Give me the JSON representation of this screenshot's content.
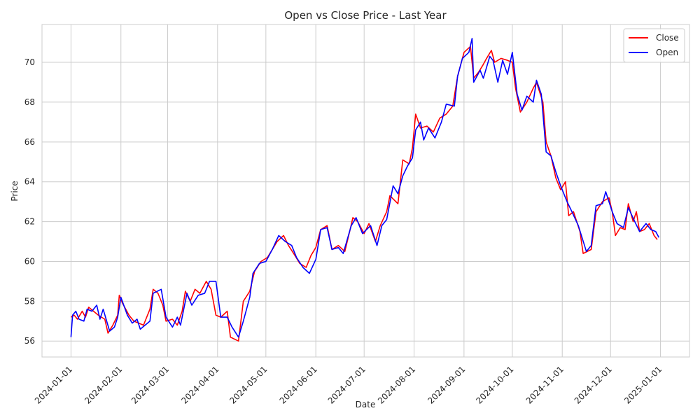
{
  "chart_data": {
    "type": "line",
    "title": "Open vs Close Price - Last Year",
    "xlabel": "Date",
    "ylabel": "Price",
    "xlim": [
      "2023-12-14",
      "2025-01-19"
    ],
    "ylim": [
      55.2,
      71.9
    ],
    "x_ticks": [
      "2024-01-01",
      "2024-02-01",
      "2024-03-01",
      "2024-04-01",
      "2024-05-01",
      "2024-06-01",
      "2024-07-01",
      "2024-08-01",
      "2024-09-01",
      "2024-10-01",
      "2024-11-01",
      "2024-12-01",
      "2025-01-01"
    ],
    "y_ticks": [
      56,
      58,
      60,
      62,
      64,
      66,
      68,
      70
    ],
    "grid": true,
    "legend_position": "top-right",
    "series": [
      {
        "name": "Close",
        "color": "#ff0000",
        "points": [
          [
            "2024-01-01",
            57.2
          ],
          [
            "2024-01-03",
            57.3
          ],
          [
            "2024-01-05",
            57.1
          ],
          [
            "2024-01-08",
            57.5
          ],
          [
            "2024-01-10",
            57.2
          ],
          [
            "2024-01-12",
            57.7
          ],
          [
            "2024-01-15",
            57.5
          ],
          [
            "2024-01-18",
            57.3
          ],
          [
            "2024-01-22",
            57.1
          ],
          [
            "2024-01-24",
            56.4
          ],
          [
            "2024-01-27",
            56.8
          ],
          [
            "2024-01-30",
            57.3
          ],
          [
            "2024-01-31",
            58.3
          ],
          [
            "2024-02-02",
            57.9
          ],
          [
            "2024-02-06",
            57.3
          ],
          [
            "2024-02-09",
            57.0
          ],
          [
            "2024-02-12",
            56.9
          ],
          [
            "2024-02-15",
            56.8
          ],
          [
            "2024-02-19",
            57.6
          ],
          [
            "2024-02-21",
            58.6
          ],
          [
            "2024-02-24",
            58.4
          ],
          [
            "2024-02-27",
            57.8
          ],
          [
            "2024-02-29",
            57.0
          ],
          [
            "2024-03-04",
            57.1
          ],
          [
            "2024-03-07",
            56.8
          ],
          [
            "2024-03-10",
            57.5
          ],
          [
            "2024-03-12",
            58.5
          ],
          [
            "2024-03-15",
            58.0
          ],
          [
            "2024-03-18",
            58.6
          ],
          [
            "2024-03-21",
            58.4
          ],
          [
            "2024-03-25",
            59.0
          ],
          [
            "2024-03-28",
            58.6
          ],
          [
            "2024-03-31",
            57.3
          ],
          [
            "2024-04-03",
            57.2
          ],
          [
            "2024-04-07",
            57.5
          ],
          [
            "2024-04-09",
            56.2
          ],
          [
            "2024-04-14",
            56.0
          ],
          [
            "2024-04-17",
            58.0
          ],
          [
            "2024-04-21",
            58.5
          ],
          [
            "2024-04-24",
            59.5
          ],
          [
            "2024-04-28",
            60.0
          ],
          [
            "2024-05-02",
            60.2
          ],
          [
            "2024-05-05",
            60.6
          ],
          [
            "2024-05-08",
            61.0
          ],
          [
            "2024-05-12",
            61.3
          ],
          [
            "2024-05-15",
            60.8
          ],
          [
            "2024-05-19",
            60.3
          ],
          [
            "2024-05-22",
            59.9
          ],
          [
            "2024-05-26",
            59.7
          ],
          [
            "2024-05-29",
            60.3
          ],
          [
            "2024-06-01",
            60.7
          ],
          [
            "2024-06-04",
            61.6
          ],
          [
            "2024-06-08",
            61.8
          ],
          [
            "2024-06-11",
            60.6
          ],
          [
            "2024-06-15",
            60.8
          ],
          [
            "2024-06-19",
            60.5
          ],
          [
            "2024-06-22",
            61.5
          ],
          [
            "2024-06-24",
            62.2
          ],
          [
            "2024-06-27",
            62.0
          ],
          [
            "2024-07-01",
            61.4
          ],
          [
            "2024-07-04",
            61.9
          ],
          [
            "2024-07-08",
            61.0
          ],
          [
            "2024-07-11",
            61.8
          ],
          [
            "2024-07-15",
            62.5
          ],
          [
            "2024-07-17",
            63.3
          ],
          [
            "2024-07-22",
            62.9
          ],
          [
            "2024-07-25",
            65.1
          ],
          [
            "2024-07-29",
            64.9
          ],
          [
            "2024-07-31",
            65.7
          ],
          [
            "2024-08-02",
            67.4
          ],
          [
            "2024-08-05",
            66.7
          ],
          [
            "2024-08-09",
            66.8
          ],
          [
            "2024-08-13",
            66.5
          ],
          [
            "2024-08-17",
            67.2
          ],
          [
            "2024-08-21",
            67.4
          ],
          [
            "2024-08-25",
            67.8
          ],
          [
            "2024-08-28",
            69.3
          ],
          [
            "2024-09-01",
            70.5
          ],
          [
            "2024-09-05",
            70.8
          ],
          [
            "2024-09-07",
            69.2
          ],
          [
            "2024-09-10",
            69.5
          ],
          [
            "2024-09-13",
            69.9
          ],
          [
            "2024-09-15",
            70.2
          ],
          [
            "2024-09-18",
            70.6
          ],
          [
            "2024-09-20",
            70.0
          ],
          [
            "2024-09-24",
            70.2
          ],
          [
            "2024-09-28",
            70.1
          ],
          [
            "2024-10-01",
            70.0
          ],
          [
            "2024-10-03",
            68.7
          ],
          [
            "2024-10-06",
            67.5
          ],
          [
            "2024-10-10",
            68.0
          ],
          [
            "2024-10-14",
            68.7
          ],
          [
            "2024-10-16",
            69.0
          ],
          [
            "2024-10-20",
            68.0
          ],
          [
            "2024-10-22",
            66.0
          ],
          [
            "2024-10-25",
            65.3
          ],
          [
            "2024-10-28",
            64.2
          ],
          [
            "2024-10-31",
            63.6
          ],
          [
            "2024-11-03",
            64.0
          ],
          [
            "2024-11-05",
            62.3
          ],
          [
            "2024-11-08",
            62.5
          ],
          [
            "2024-11-12",
            61.5
          ],
          [
            "2024-11-14",
            60.4
          ],
          [
            "2024-11-19",
            60.6
          ],
          [
            "2024-11-22",
            62.5
          ],
          [
            "2024-11-26",
            63.0
          ],
          [
            "2024-11-30",
            63.2
          ],
          [
            "2024-12-02",
            62.5
          ],
          [
            "2024-12-04",
            61.3
          ],
          [
            "2024-12-07",
            61.7
          ],
          [
            "2024-12-10",
            61.6
          ],
          [
            "2024-12-12",
            62.9
          ],
          [
            "2024-12-15",
            62.0
          ],
          [
            "2024-12-17",
            62.5
          ],
          [
            "2024-12-19",
            61.5
          ],
          [
            "2024-12-22",
            61.6
          ],
          [
            "2024-12-25",
            61.9
          ],
          [
            "2024-12-28",
            61.3
          ],
          [
            "2024-12-30",
            61.1
          ]
        ]
      },
      {
        "name": "Open",
        "color": "#0000ff",
        "points": [
          [
            "2024-01-01",
            56.2
          ],
          [
            "2024-01-02",
            57.3
          ],
          [
            "2024-01-04",
            57.5
          ],
          [
            "2024-01-06",
            57.1
          ],
          [
            "2024-01-09",
            57.0
          ],
          [
            "2024-01-11",
            57.6
          ],
          [
            "2024-01-14",
            57.5
          ],
          [
            "2024-01-17",
            57.8
          ],
          [
            "2024-01-19",
            57.1
          ],
          [
            "2024-01-21",
            57.6
          ],
          [
            "2024-01-25",
            56.5
          ],
          [
            "2024-01-28",
            56.7
          ],
          [
            "2024-01-30",
            57.2
          ],
          [
            "2024-02-01",
            58.2
          ],
          [
            "2024-02-05",
            57.3
          ],
          [
            "2024-02-08",
            56.9
          ],
          [
            "2024-02-11",
            57.1
          ],
          [
            "2024-02-13",
            56.6
          ],
          [
            "2024-02-19",
            57.0
          ],
          [
            "2024-02-21",
            58.4
          ],
          [
            "2024-02-26",
            58.6
          ],
          [
            "2024-02-29",
            57.2
          ],
          [
            "2024-03-04",
            56.7
          ],
          [
            "2024-03-07",
            57.2
          ],
          [
            "2024-03-09",
            56.8
          ],
          [
            "2024-03-13",
            58.4
          ],
          [
            "2024-03-16",
            57.8
          ],
          [
            "2024-03-20",
            58.3
          ],
          [
            "2024-03-24",
            58.4
          ],
          [
            "2024-03-27",
            59.0
          ],
          [
            "2024-03-31",
            59.0
          ],
          [
            "2024-04-03",
            57.2
          ],
          [
            "2024-04-07",
            57.2
          ],
          [
            "2024-04-10",
            56.7
          ],
          [
            "2024-04-14",
            56.2
          ],
          [
            "2024-04-17",
            57.0
          ],
          [
            "2024-04-21",
            58.2
          ],
          [
            "2024-04-23",
            59.4
          ],
          [
            "2024-04-27",
            59.9
          ],
          [
            "2024-05-01",
            60.0
          ],
          [
            "2024-05-05",
            60.6
          ],
          [
            "2024-05-09",
            61.3
          ],
          [
            "2024-05-13",
            61.0
          ],
          [
            "2024-05-17",
            60.8
          ],
          [
            "2024-05-20",
            60.2
          ],
          [
            "2024-05-24",
            59.7
          ],
          [
            "2024-05-28",
            59.4
          ],
          [
            "2024-06-01",
            60.1
          ],
          [
            "2024-06-04",
            61.6
          ],
          [
            "2024-06-08",
            61.7
          ],
          [
            "2024-06-11",
            60.6
          ],
          [
            "2024-06-15",
            60.7
          ],
          [
            "2024-06-18",
            60.4
          ],
          [
            "2024-06-23",
            61.8
          ],
          [
            "2024-06-26",
            62.2
          ],
          [
            "2024-06-30",
            61.4
          ],
          [
            "2024-07-05",
            61.8
          ],
          [
            "2024-07-09",
            60.8
          ],
          [
            "2024-07-12",
            61.8
          ],
          [
            "2024-07-15",
            62.1
          ],
          [
            "2024-07-19",
            63.8
          ],
          [
            "2024-07-22",
            63.4
          ],
          [
            "2024-07-25",
            64.3
          ],
          [
            "2024-07-28",
            64.8
          ],
          [
            "2024-07-31",
            65.2
          ],
          [
            "2024-08-02",
            66.6
          ],
          [
            "2024-08-05",
            67.0
          ],
          [
            "2024-08-07",
            66.1
          ],
          [
            "2024-08-10",
            66.7
          ],
          [
            "2024-08-14",
            66.2
          ],
          [
            "2024-08-18",
            67.0
          ],
          [
            "2024-08-21",
            67.9
          ],
          [
            "2024-08-26",
            67.8
          ],
          [
            "2024-08-28",
            69.3
          ],
          [
            "2024-08-31",
            70.2
          ],
          [
            "2024-09-04",
            70.5
          ],
          [
            "2024-09-06",
            71.2
          ],
          [
            "2024-09-07",
            69.0
          ],
          [
            "2024-09-11",
            69.6
          ],
          [
            "2024-09-13",
            69.2
          ],
          [
            "2024-09-17",
            70.3
          ],
          [
            "2024-09-19",
            70.1
          ],
          [
            "2024-09-22",
            69.0
          ],
          [
            "2024-09-25",
            70.1
          ],
          [
            "2024-09-28",
            69.4
          ],
          [
            "2024-10-01",
            70.5
          ],
          [
            "2024-10-04",
            68.4
          ],
          [
            "2024-10-07",
            67.6
          ],
          [
            "2024-10-10",
            68.3
          ],
          [
            "2024-10-14",
            68.0
          ],
          [
            "2024-10-16",
            69.1
          ],
          [
            "2024-10-19",
            68.4
          ],
          [
            "2024-10-22",
            65.5
          ],
          [
            "2024-10-25",
            65.3
          ],
          [
            "2024-10-28",
            64.5
          ],
          [
            "2024-10-31",
            63.8
          ],
          [
            "2024-11-04",
            63.0
          ],
          [
            "2024-11-07",
            62.5
          ],
          [
            "2024-11-11",
            61.8
          ],
          [
            "2024-11-16",
            60.5
          ],
          [
            "2024-11-19",
            60.8
          ],
          [
            "2024-11-22",
            62.8
          ],
          [
            "2024-11-26",
            62.9
          ],
          [
            "2024-11-28",
            63.5
          ],
          [
            "2024-12-02",
            62.5
          ],
          [
            "2024-12-05",
            61.9
          ],
          [
            "2024-12-09",
            61.7
          ],
          [
            "2024-12-12",
            62.7
          ],
          [
            "2024-12-16",
            62.0
          ],
          [
            "2024-12-19",
            61.5
          ],
          [
            "2024-12-23",
            61.9
          ],
          [
            "2024-12-26",
            61.6
          ],
          [
            "2024-12-29",
            61.5
          ],
          [
            "2024-12-31",
            61.2
          ]
        ]
      }
    ]
  }
}
